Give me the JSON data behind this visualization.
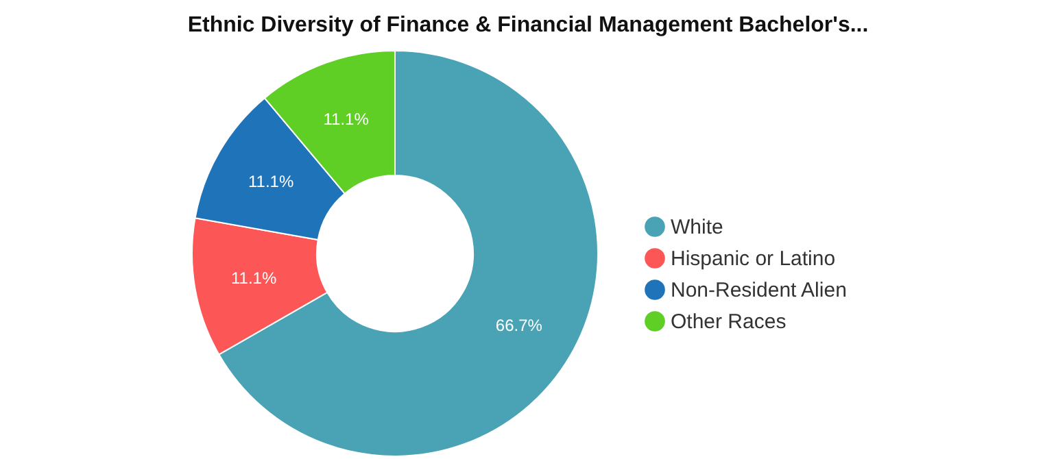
{
  "chart_data": {
    "type": "donut",
    "title": "Ethnic Diversity of Finance & Financial Management Bachelor's...",
    "categories": [
      "White",
      "Hispanic or Latino",
      "Non-Resident Alien",
      "Other Races"
    ],
    "values": [
      66.7,
      11.1,
      11.1,
      11.1
    ],
    "colors": [
      "#4aa3b5",
      "#fd5656",
      "#1f73b9",
      "#5fcf25"
    ],
    "value_labels": [
      "66.7%",
      "11.1%",
      "11.1%",
      "11.1%"
    ],
    "legend": "right"
  }
}
